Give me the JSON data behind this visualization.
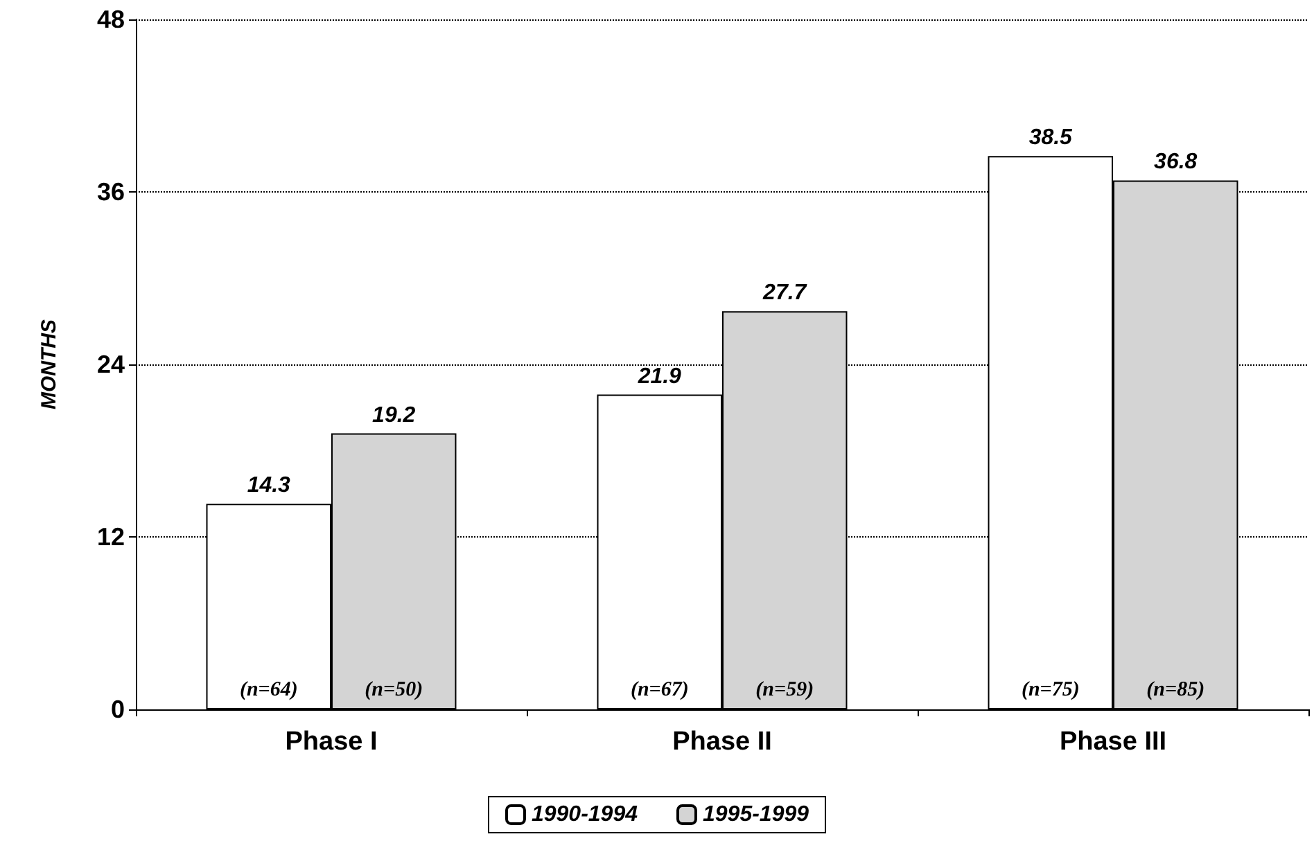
{
  "chart_data": {
    "type": "bar",
    "ylabel": "MONTHS",
    "categories": [
      "Phase I",
      "Phase II",
      "Phase III"
    ],
    "series": [
      {
        "name": "1990-1994",
        "color": "#ffffff",
        "values": [
          14.3,
          21.9,
          38.5
        ]
      },
      {
        "name": "1995-1999",
        "color": "#d4d4d4",
        "values": [
          19.2,
          27.7,
          36.8
        ]
      }
    ],
    "ylim": [
      0,
      48
    ],
    "yticks": [
      0,
      12,
      24,
      36,
      48
    ],
    "grid": "y",
    "legend": "bottom",
    "data_labels": true,
    "annotations": [
      {
        "text": "(n=64)",
        "x": "Phase I",
        "y": 0
      },
      {
        "text": "(n=50)",
        "x": "Phase I",
        "y": 0
      },
      {
        "text": "(n=67)",
        "x": "Phase II",
        "y": 0
      },
      {
        "text": "(n=59)",
        "x": "Phase II",
        "y": 0
      },
      {
        "text": "(n=75)",
        "x": "Phase III",
        "y": 0
      },
      {
        "text": "(n=85)",
        "x": "Phase III",
        "y": 0
      }
    ]
  }
}
